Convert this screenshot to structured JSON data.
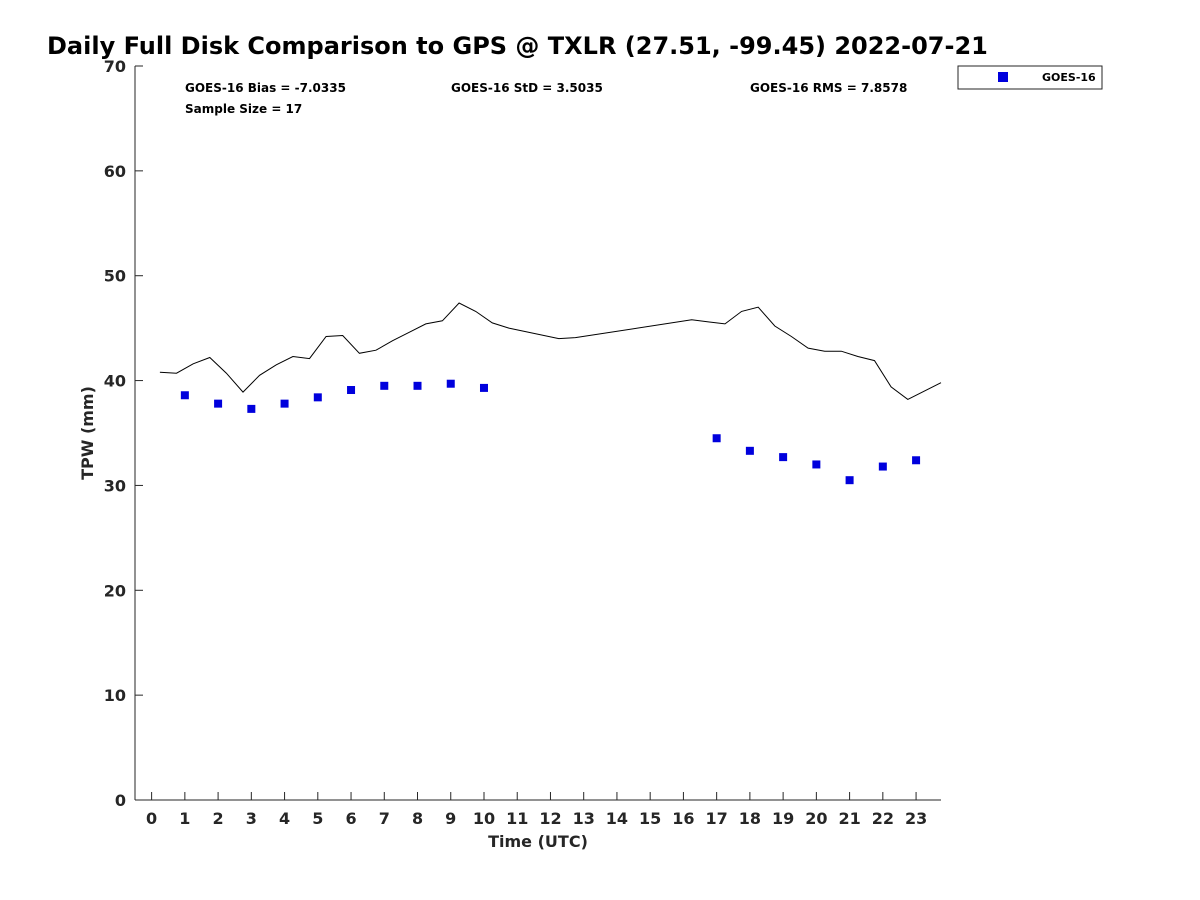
{
  "chart_data": {
    "type": "scatter",
    "title": "Daily Full Disk Comparison to GPS @ TXLR (27.51, -99.45) 2022-07-21",
    "xlabel": "Time (UTC)",
    "ylabel": "TPW (mm)",
    "xlim": [
      -0.5,
      23.75
    ],
    "ylim": [
      0,
      70
    ],
    "x_ticks": [
      0,
      1,
      2,
      3,
      4,
      5,
      6,
      7,
      8,
      9,
      10,
      11,
      12,
      13,
      14,
      15,
      16,
      17,
      18,
      19,
      20,
      21,
      22,
      23
    ],
    "y_ticks": [
      0,
      10,
      20,
      30,
      40,
      50,
      60,
      70
    ],
    "grid": false,
    "legend": {
      "position": "top-right",
      "entries": [
        "GOES-16"
      ]
    },
    "stats": {
      "bias": "GOES-16 Bias = -7.0335",
      "std": "GOES-16 StD = 3.5035",
      "rms": "GOES-16 RMS = 7.8578",
      "sample_size": "Sample Size = 17"
    },
    "series": [
      {
        "name": "GOES-16",
        "kind": "scatter",
        "marker": "square",
        "color": "#0000dd",
        "x": [
          1,
          2,
          3,
          4,
          5,
          6,
          7,
          8,
          9,
          10,
          17,
          18,
          19,
          20,
          21,
          22,
          23
        ],
        "y": [
          38.6,
          37.8,
          37.3,
          37.8,
          38.4,
          39.1,
          39.5,
          39.5,
          39.7,
          39.3,
          34.5,
          33.3,
          32.7,
          32.0,
          30.5,
          31.8,
          32.4
        ]
      },
      {
        "kind": "line",
        "color": "#000000",
        "x": [
          0.25,
          0.75,
          1.25,
          1.75,
          2.25,
          2.75,
          3.25,
          3.75,
          4.25,
          4.75,
          5.25,
          5.75,
          6.25,
          6.75,
          7.25,
          7.75,
          8.25,
          8.75,
          9.25,
          9.75,
          10.25,
          10.75,
          12.25,
          12.75,
          16.25,
          16.75,
          17.25,
          17.75,
          18.25,
          18.75,
          19.25,
          19.75,
          20.25,
          20.75,
          21.25,
          21.75,
          22.25,
          22.75,
          23.75
        ],
        "y": [
          40.8,
          40.7,
          41.6,
          42.2,
          40.7,
          38.9,
          40.5,
          41.5,
          42.3,
          42.1,
          44.2,
          44.3,
          42.6,
          42.9,
          43.8,
          44.6,
          45.4,
          45.7,
          47.4,
          46.6,
          45.5,
          45.0,
          44.0,
          44.1,
          45.8,
          45.6,
          45.4,
          46.6,
          47.0,
          45.2,
          44.2,
          43.1,
          42.8,
          42.8,
          42.3,
          41.9,
          39.4,
          38.2,
          39.8
        ]
      }
    ]
  }
}
